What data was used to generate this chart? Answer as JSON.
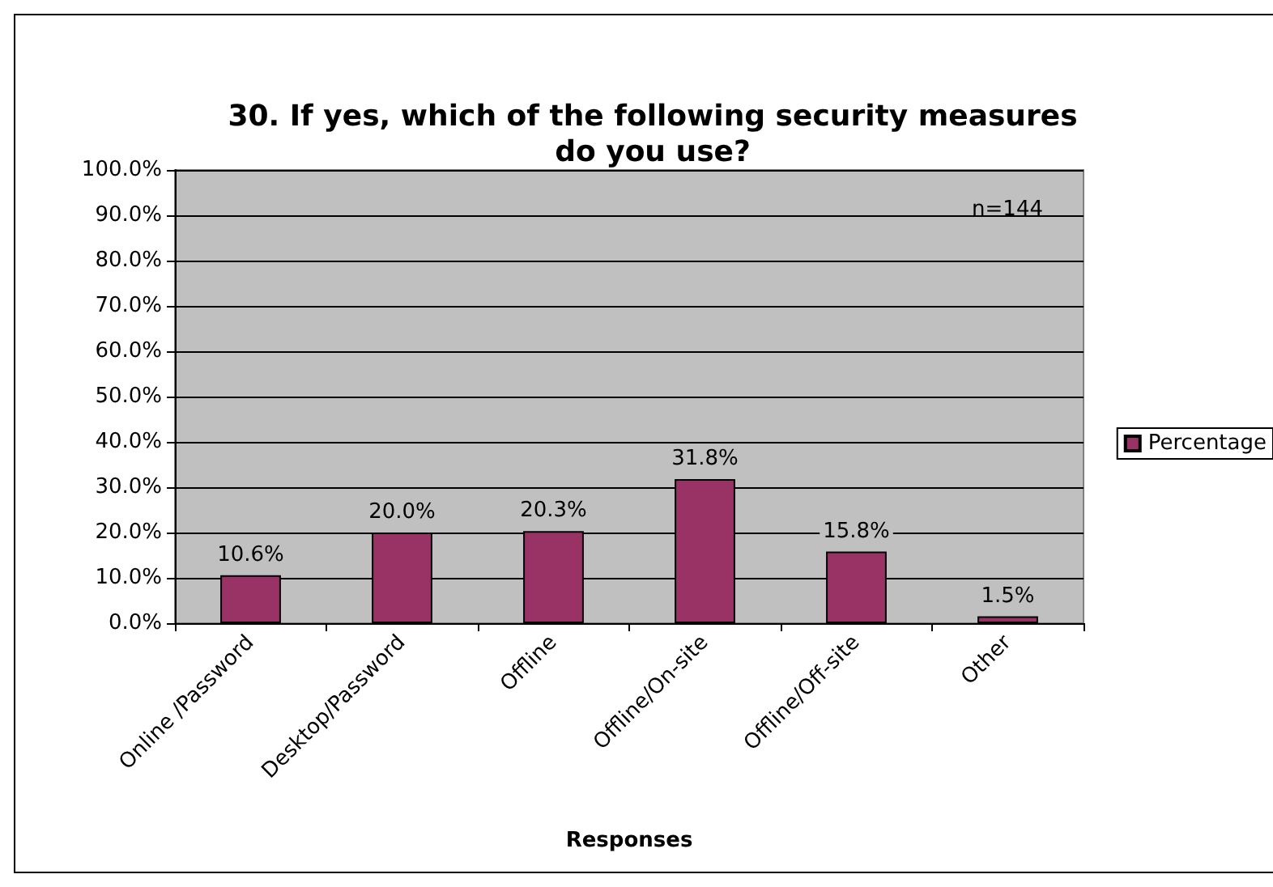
{
  "chart_data": {
    "type": "bar",
    "title": "30. If yes, which of the following security measures\ndo you use?",
    "xlabel": "Responses",
    "categories": [
      "Online /Password",
      "Desktop/Password",
      "Offline",
      "Offline/On-site",
      "Offline/Off-site",
      "Other"
    ],
    "series": [
      {
        "name": "Percentage",
        "color": "#993366",
        "values": [
          10.6,
          20.0,
          20.3,
          31.8,
          15.8,
          1.5
        ],
        "value_labels": [
          "10.6%",
          "20.0%",
          "20.3%",
          "31.8%",
          "15.8%",
          "1.5%"
        ]
      }
    ],
    "ylim": [
      0,
      100
    ],
    "yticks": [
      {
        "value": 0,
        "label": "0.0%"
      },
      {
        "value": 10,
        "label": "10.0%"
      },
      {
        "value": 20,
        "label": "20.0%"
      },
      {
        "value": 30,
        "label": "30.0%"
      },
      {
        "value": 40,
        "label": "40.0%"
      },
      {
        "value": 50,
        "label": "50.0%"
      },
      {
        "value": 60,
        "label": "60.0%"
      },
      {
        "value": 70,
        "label": "70.0%"
      },
      {
        "value": 80,
        "label": "80.0%"
      },
      {
        "value": 90,
        "label": "90.0%"
      },
      {
        "value": 100,
        "label": "100.0%"
      }
    ],
    "grid": "y",
    "legend": "right",
    "annotations": [
      "n=144"
    ]
  }
}
